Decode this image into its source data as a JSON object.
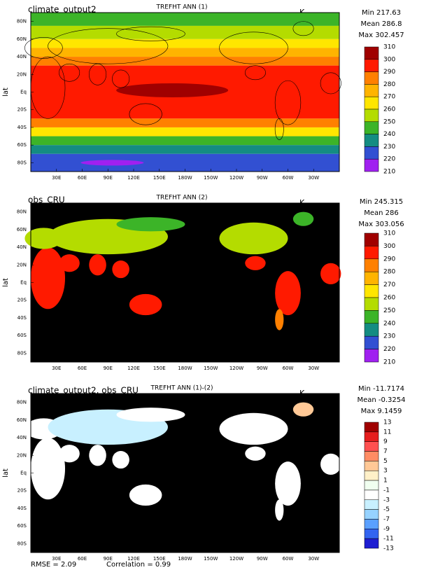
{
  "y_axis_label": "lat",
  "lat_labels": [
    "80N",
    "60N",
    "40N",
    "20N",
    "Eq",
    "20S",
    "40S",
    "60S",
    "80S"
  ],
  "lon_labels": [
    "30E",
    "60E",
    "90E",
    "120E",
    "150E",
    "180W",
    "150W",
    "120W",
    "90W",
    "60W",
    "30W"
  ],
  "panels": [
    {
      "title": "climate_output2",
      "subtitle": "TREFHT ANN (1)",
      "units": "K",
      "stats": [
        "Min 217.63",
        "Mean 286.8",
        "Max 302.457"
      ],
      "colorbar": {
        "labels": [
          "310",
          "300",
          "290",
          "280",
          "270",
          "260",
          "250",
          "240",
          "230",
          "220",
          "210"
        ],
        "colors": [
          "#a00000",
          "#ff1a00",
          "#ff8000",
          "#ffb400",
          "#ffe600",
          "#b4dc00",
          "#3cb428",
          "#148c82",
          "#3250d2",
          "#a020f0"
        ]
      }
    },
    {
      "title": "obs_CRU",
      "subtitle": "TREFHT ANN (2)",
      "units": "K",
      "stats": [
        "Min 245.315",
        "Mean 286",
        "Max 303.056"
      ],
      "colorbar": {
        "labels": [
          "310",
          "300",
          "290",
          "280",
          "270",
          "260",
          "250",
          "240",
          "230",
          "220",
          "210"
        ],
        "colors": [
          "#a00000",
          "#ff1a00",
          "#ff8000",
          "#ffb400",
          "#ffe600",
          "#b4dc00",
          "#3cb428",
          "#148c82",
          "#3250d2",
          "#a020f0"
        ]
      }
    },
    {
      "title": "climate_output2, obs_CRU",
      "subtitle": "TREFHT ANN (1)-(2)",
      "units": "K",
      "stats": [
        "Min -11.7174",
        "Mean -0.3254",
        "Max 9.1459"
      ],
      "colorbar": {
        "labels": [
          "13",
          "11",
          "9",
          "7",
          "5",
          "3",
          "1",
          "-1",
          "-3",
          "-5",
          "-7",
          "-9",
          "-11",
          "-13"
        ],
        "colors": [
          "#a00000",
          "#e61e1e",
          "#ff5050",
          "#ff8c64",
          "#ffc896",
          "#fff0c8",
          "#f0fff0",
          "#ffffff",
          "#c8f0ff",
          "#96d2ff",
          "#5aa0ff",
          "#3264f0",
          "#1e1ed2"
        ]
      }
    }
  ],
  "footer": {
    "rmse": "RMSE = 2.09",
    "correlation": "Correlation = 0.99"
  }
}
